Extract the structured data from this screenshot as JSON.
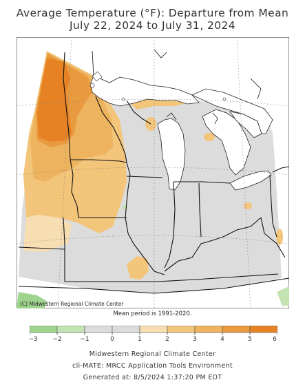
{
  "map": {
    "title_line1": "Average Temperature (°F): Departure from Mean",
    "title_line2": "July 22, 2024 to July 31, 2024",
    "copyright": "(C) Midwestern Regional Climate Center",
    "note": "Mean period is 1991-2020."
  },
  "legend": {
    "bins": [
      {
        "min": -3,
        "max": -2,
        "color": "#9fd48e"
      },
      {
        "min": -2,
        "max": -1,
        "color": "#c3e3b2"
      },
      {
        "min": -1,
        "max": 0,
        "color": "#dcdcdc"
      },
      {
        "min": 0,
        "max": 1,
        "color": "#dcdcdc"
      },
      {
        "min": 1,
        "max": 2,
        "color": "#f7deb2"
      },
      {
        "min": 2,
        "max": 3,
        "color": "#f2c57a"
      },
      {
        "min": 3,
        "max": 4,
        "color": "#edb35e"
      },
      {
        "min": 4,
        "max": 5,
        "color": "#e99a3f"
      },
      {
        "min": 5,
        "max": 6,
        "color": "#e68224"
      }
    ],
    "tick_labels": [
      "−3",
      "−2",
      "−1",
      "0",
      "1",
      "2",
      "3",
      "4",
      "5",
      "6"
    ]
  },
  "footer": {
    "line1": "Midwestern Regional Climate Center",
    "line2": "cli-MATE: MRCC Application Tools Environment",
    "line3": "Generated at: 8/5/2024 1:37:20 PM EDT"
  }
}
